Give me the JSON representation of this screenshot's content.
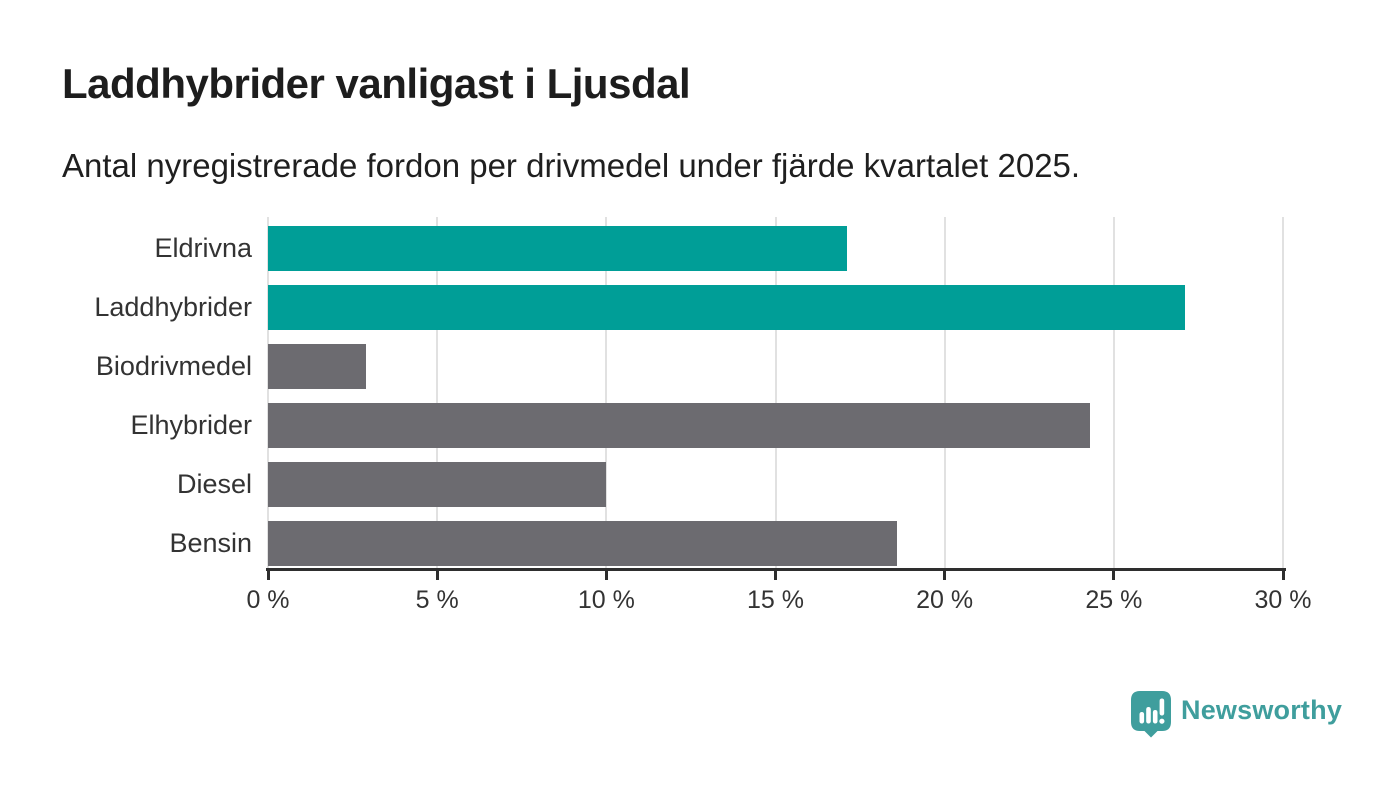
{
  "title": "Laddhybrider vanligast i Ljusdal",
  "subtitle": "Antal nyregistrerade fordon per drivmedel under fjärde kvartalet 2025.",
  "chart_data": {
    "type": "bar",
    "orientation": "horizontal",
    "categories": [
      "Eldrivna",
      "Laddhybrider",
      "Biodrivmedel",
      "Elhybrider",
      "Diesel",
      "Bensin"
    ],
    "values": [
      17.1,
      27.1,
      2.9,
      24.3,
      10.0,
      18.6
    ],
    "unit": "%",
    "highlight_color": "#009E97",
    "default_color": "#6C6B70",
    "bar_colors": [
      "#009E97",
      "#009E97",
      "#6C6B70",
      "#6C6B70",
      "#6C6B70",
      "#6C6B70"
    ],
    "xlim": [
      0,
      30
    ],
    "x_ticks": [
      0,
      5,
      10,
      15,
      20,
      25,
      30
    ],
    "x_tick_labels": [
      "0 %",
      "5 %",
      "10 %",
      "15 %",
      "20 %",
      "25 %",
      "30 %"
    ],
    "grid": true,
    "grid_color": "#E1E1E1",
    "axis_color": "#2E2E2E",
    "label_color": "#333333",
    "legend": "none",
    "title": "Laddhybrider vanligast i Ljusdal",
    "xlabel": "",
    "ylabel": ""
  },
  "branding": {
    "logo_text": "Newsworthy",
    "logo_color": "#3F9E9D",
    "logo_bar_color": "#FFFFFF"
  }
}
